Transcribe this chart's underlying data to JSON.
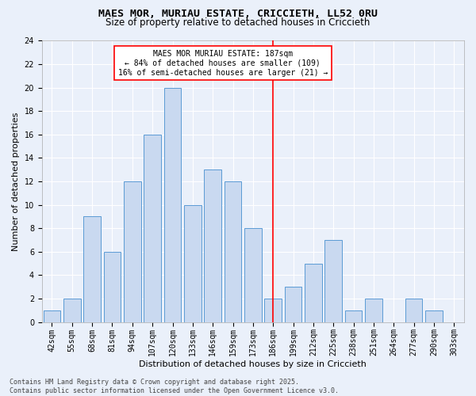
{
  "title1": "MAES MOR, MURIAU ESTATE, CRICCIETH, LL52 0RU",
  "title2": "Size of property relative to detached houses in Criccieth",
  "xlabel": "Distribution of detached houses by size in Criccieth",
  "ylabel": "Number of detached properties",
  "categories": [
    "42sqm",
    "55sqm",
    "68sqm",
    "81sqm",
    "94sqm",
    "107sqm",
    "120sqm",
    "133sqm",
    "146sqm",
    "159sqm",
    "173sqm",
    "186sqm",
    "199sqm",
    "212sqm",
    "225sqm",
    "238sqm",
    "251sqm",
    "264sqm",
    "277sqm",
    "290sqm",
    "303sqm"
  ],
  "values": [
    1,
    2,
    9,
    6,
    12,
    16,
    20,
    10,
    13,
    12,
    8,
    2,
    3,
    5,
    7,
    1,
    2,
    0,
    2,
    1,
    0
  ],
  "bar_color": "#c9d9f0",
  "bar_edge_color": "#5b9bd5",
  "highlight_index": 11,
  "annotation_title": "MAES MOR MURIAU ESTATE: 187sqm",
  "annotation_line1": "← 84% of detached houses are smaller (109)",
  "annotation_line2": "16% of semi-detached houses are larger (21) →",
  "ylim": [
    0,
    24
  ],
  "yticks": [
    0,
    2,
    4,
    6,
    8,
    10,
    12,
    14,
    16,
    18,
    20,
    22,
    24
  ],
  "footer1": "Contains HM Land Registry data © Crown copyright and database right 2025.",
  "footer2": "Contains public sector information licensed under the Open Government Licence v3.0.",
  "background_color": "#eaf0fa",
  "grid_color": "#ffffff",
  "title_fontsize": 9.5,
  "subtitle_fontsize": 8.5,
  "axis_label_fontsize": 8,
  "tick_fontsize": 7,
  "annotation_fontsize": 7,
  "footer_fontsize": 6
}
